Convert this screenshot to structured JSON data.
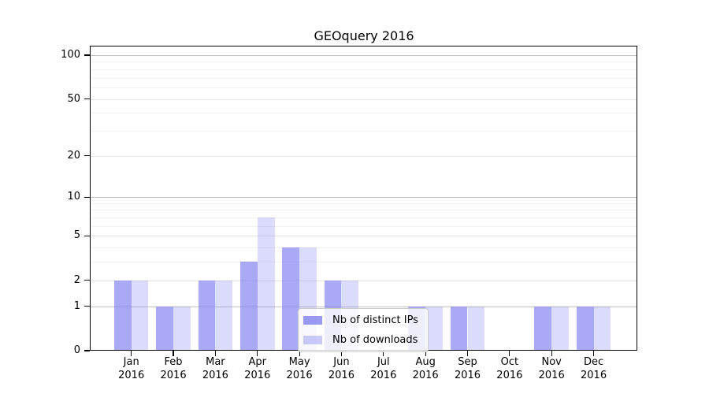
{
  "chart_data": {
    "type": "bar",
    "title": "GEOquery 2016",
    "categories": [
      "Jan 2016",
      "Feb 2016",
      "Mar 2016",
      "Apr 2016",
      "May 2016",
      "Jun 2016",
      "Jul 2016",
      "Aug 2016",
      "Sep 2016",
      "Oct 2016",
      "Nov 2016",
      "Dec 2016"
    ],
    "series": [
      {
        "name": "Nb of distinct IPs",
        "color": "#7d7df0",
        "opacity": 0.66,
        "values": [
          2,
          1,
          2,
          3,
          4,
          2,
          0,
          1,
          1,
          0,
          1,
          1
        ]
      },
      {
        "name": "Nb of downloads",
        "color": "#7d7df0",
        "opacity": 0.28,
        "values": [
          2,
          1,
          2,
          7,
          4,
          2,
          0,
          1,
          1,
          0,
          1,
          1
        ]
      }
    ],
    "xlabel": "",
    "ylabel": "",
    "yscale": "log(1+x)",
    "ylim": [
      0,
      116
    ],
    "yticks": [
      0,
      1,
      2,
      5,
      10,
      20,
      50,
      100
    ],
    "gridlines": {
      "major": [
        1,
        10,
        100
      ],
      "mid": [
        2,
        5,
        20,
        50
      ],
      "minor": [
        3,
        4,
        6,
        7,
        8,
        9,
        30,
        40,
        60,
        70,
        80,
        90
      ]
    },
    "grid": true,
    "legend_position": "lower center",
    "gridline_colors": {
      "major": "#c3c3c3",
      "mid": "#e4e4e4",
      "minor": "#f1f1f1"
    }
  }
}
